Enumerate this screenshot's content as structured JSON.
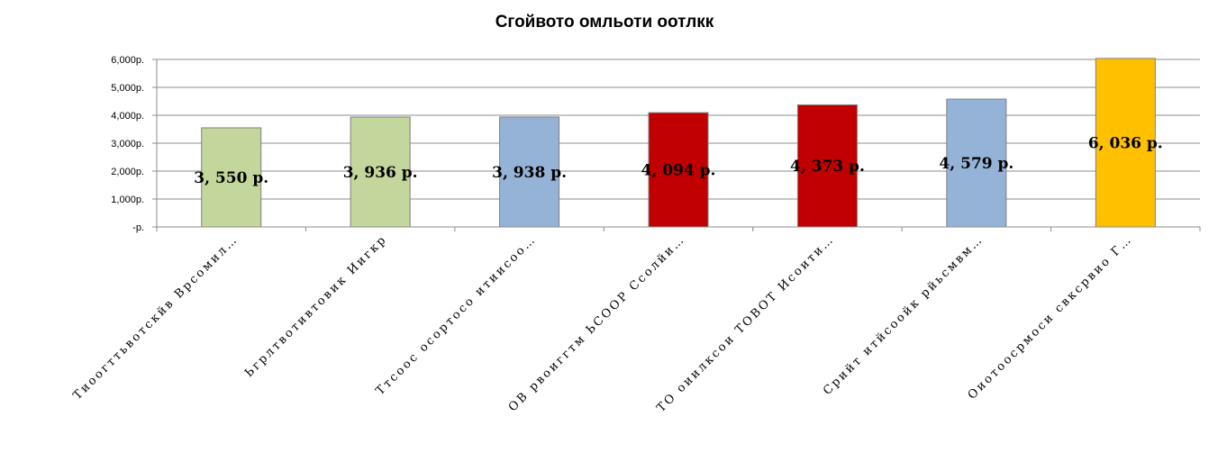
{
  "chart_data": {
    "type": "bar",
    "title": "Сгойвото омльоти оотлкк",
    "xlabel": "",
    "ylabel": "",
    "ylim": [
      0,
      6000
    ],
    "yticks": [
      0,
      1000,
      2000,
      3000,
      4000,
      5000,
      6000
    ],
    "ytick_labels": [
      "-р.",
      "1,000р.",
      "2,000р.",
      "3,000р.",
      "4,000р.",
      "5,000р.",
      "6,000р."
    ],
    "grid": true,
    "legend": "none",
    "categories": [
      "Тиоогттьвотскйв Врсомил…",
      "Ьгрлтвотивтовик Иигкр",
      "Ттсоос осортосо итиисоо…",
      "ОВ рвоиггтм ЬСООР Ссолйи…",
      "ТО оиилксои ТОВОТ Исоити…",
      "Срийт итйсоойк рйьсмвм…",
      "Оиотоосрмоси свксрвио Г…"
    ],
    "values": [
      3550,
      3936,
      3938,
      4094,
      4373,
      4579,
      6036
    ],
    "value_labels": [
      "3, 550 р.",
      "3, 936 р.",
      "3, 938 р.",
      "4, 094 р.",
      "4, 373 р.",
      "4, 579 р.",
      "6, 036 р."
    ],
    "bar_colors": [
      "#c3d69b",
      "#c3d69b",
      "#95b3d7",
      "#c00000",
      "#c00000",
      "#95b3d7",
      "#ffc000"
    ]
  }
}
